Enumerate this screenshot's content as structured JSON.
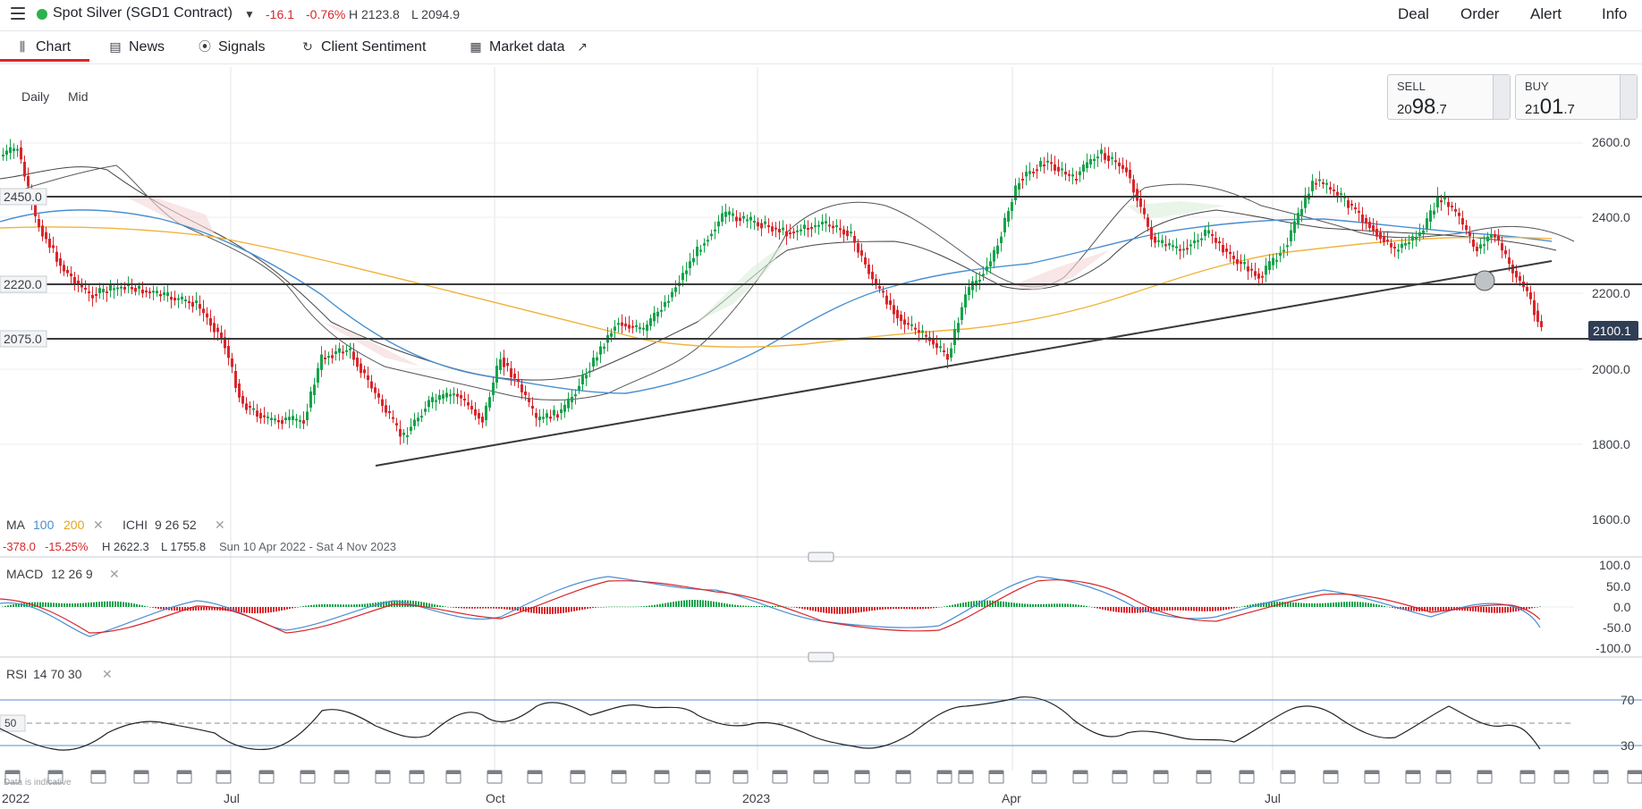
{
  "header": {
    "instrument": "Spot Silver (SGD1 Contract)",
    "change": "-16.1",
    "change_pct": "-0.76%",
    "high": "H 2123.8",
    "low": "L 2094.9",
    "actions": [
      "Deal",
      "Order",
      "Alert",
      "Info"
    ]
  },
  "tabs": [
    "Chart",
    "News",
    "Signals",
    "Client Sentiment",
    "Market data"
  ],
  "period": {
    "interval": "Daily",
    "price_type": "Mid"
  },
  "quote": {
    "sell_label": "SELL",
    "sell_prefix": "20",
    "sell_main": "98",
    "sell_suffix": ".7",
    "buy_label": "BUY",
    "buy_prefix": "21",
    "buy_main": "01",
    "buy_suffix": ".7"
  },
  "main_chart": {
    "price_axis": [
      "2600.0",
      "2400.0",
      "2200.0",
      "2000.0",
      "1800.0",
      "1600.0"
    ],
    "current_price": "2100.1",
    "level_labels": [
      "2450.0",
      "2220.0",
      "2075.0"
    ],
    "indicator_legend": {
      "ma": "MA",
      "ma1": "100",
      "ma2": "200",
      "ichi": "ICHI",
      "ichi_params": "9  26  52"
    },
    "range_stats": {
      "change": "-378.0",
      "change_pct": "-15.25%",
      "high": "H 2622.3",
      "low": "L 1755.8",
      "range": "Sun 10 Apr 2022 - Sat 4 Nov 2023"
    }
  },
  "macd": {
    "label": "MACD",
    "params": "12  26  9",
    "axis": [
      "100.0",
      "50.0",
      "0.0",
      "-50.0",
      "-100.0"
    ]
  },
  "rsi": {
    "label": "RSI",
    "params": "14  70  30",
    "axis": [
      "70",
      "30"
    ],
    "mid_label": "50"
  },
  "time_axis": [
    "2022",
    "Jul",
    "Oct",
    "2023",
    "Apr",
    "Jul"
  ],
  "disclaimer": "Data is indicative",
  "colors": {
    "up": "#16a34a",
    "down": "#d9262b",
    "ma100": "#4a8fd1",
    "ma200": "#f0b43c",
    "tab_active": "#d9262b",
    "status_dot": "#2bb24c"
  }
}
